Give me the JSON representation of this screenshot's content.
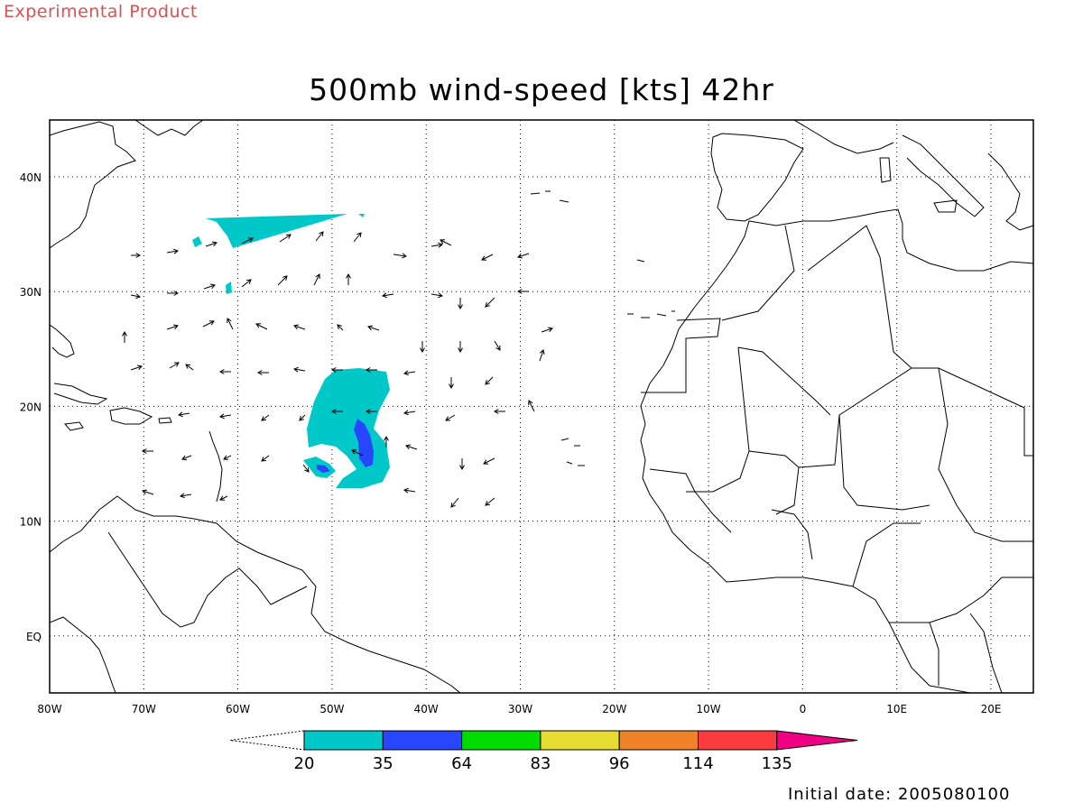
{
  "header": {
    "product_label": "Experimental Product"
  },
  "map": {
    "title": "500mb wind-speed [kts] 42hr",
    "lon_labels": [
      "80W",
      "70W",
      "60W",
      "50W",
      "40W",
      "30W",
      "20W",
      "10W",
      "0",
      "10E",
      "20E"
    ],
    "lat_labels": [
      "40N",
      "30N",
      "20N",
      "10N",
      "EQ"
    ],
    "grid": true
  },
  "legend": {
    "colors": [
      "#00c8c8",
      "#2846ff",
      "#00dc00",
      "#e6dc32",
      "#f08228",
      "#fa3c3c",
      "#f00082"
    ],
    "ticks": [
      "20",
      "35",
      "64",
      "83",
      "96",
      "114",
      "135"
    ]
  },
  "footer": {
    "initial_date": "Initial date: 2005080100"
  }
}
